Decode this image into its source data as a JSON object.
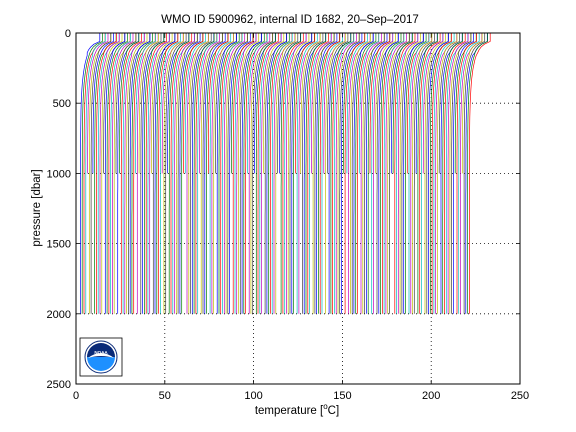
{
  "chart_data": {
    "type": "line",
    "title": "WMO ID 5900962, internal ID 1682, 20–Sep–2017",
    "xlabel_prefix": "temperature [",
    "xlabel_sup": "o",
    "xlabel_suffix": "C]",
    "ylabel": "pressure [dbar]",
    "xlim": [
      0,
      250
    ],
    "ylim": [
      0,
      2500
    ],
    "y_reversed": true,
    "xticks": [
      0,
      50,
      100,
      150,
      200,
      250
    ],
    "yticks": [
      0,
      500,
      1000,
      1500,
      2000,
      2500
    ],
    "xtick_labels": [
      "0",
      "50",
      "100",
      "150",
      "200",
      "250"
    ],
    "ytick_labels": [
      "0",
      "500",
      "1000",
      "1500",
      "2000",
      "2500"
    ],
    "grid": "dotted",
    "profile_count": 220,
    "profile_offset_step": 1.0,
    "profile_max_pressure": 2000,
    "shallow_profile_max_pressure": 1000,
    "surface_temperature": 14,
    "deep_temperature": 2.5,
    "series_colors": [
      "#0000ff",
      "#008000",
      "#ff0000",
      "#00bfbf",
      "#bf00bf",
      "#bfbf00",
      "#404040"
    ]
  },
  "logo": {
    "text": "NOAA",
    "colors": {
      "ring": "#ffffff",
      "sky": "#0a2a78",
      "sea": "#1e90ff",
      "bird": "#ffffff"
    }
  }
}
